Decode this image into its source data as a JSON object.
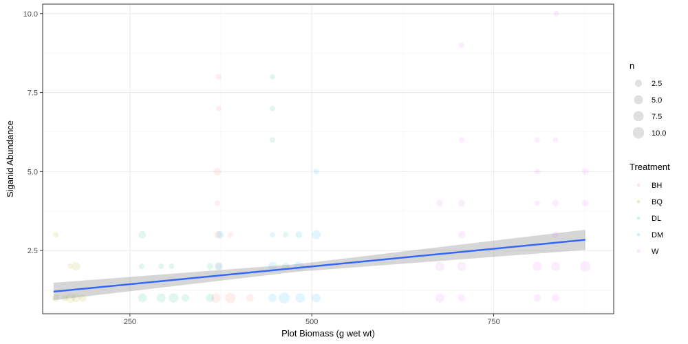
{
  "chart_data": {
    "type": "scatter",
    "title": "",
    "xlabel": "Plot Biomass (g wet wt)",
    "ylabel": "Siganid Abundance",
    "xlim": [
      130,
      915
    ],
    "ylim": [
      0.5,
      10.3
    ],
    "x_ticks": [
      250,
      500,
      750
    ],
    "x_tick_labels": [
      "250",
      "500",
      "750"
    ],
    "y_ticks": [
      2.5,
      5.0,
      7.5,
      10.0
    ],
    "y_tick_labels": [
      "2.5",
      "5.0",
      "7.5",
      "10.0"
    ],
    "grid": true,
    "legend_placement": "right",
    "size_legend": {
      "title": "n",
      "entries": [
        {
          "label": "2.5",
          "value": 2.5
        },
        {
          "label": "5.0",
          "value": 5.0
        },
        {
          "label": "7.5",
          "value": 7.5
        },
        {
          "label": "10.0",
          "value": 10.0
        }
      ]
    },
    "color_legend": {
      "title": "Treatment",
      "entries": [
        {
          "label": "BH",
          "color": "#F8766D"
        },
        {
          "label": "BQ",
          "color": "#A3A500"
        },
        {
          "label": "DL",
          "color": "#00BF7D"
        },
        {
          "label": "DM",
          "color": "#00B0F6"
        },
        {
          "label": "W",
          "color": "#E76BF3"
        }
      ]
    },
    "point_alpha": 0.12,
    "series": [
      {
        "name": "BH",
        "color": "#F8766D",
        "points": [
          {
            "x": 372,
            "y": 8,
            "n": 1
          },
          {
            "x": 372,
            "y": 7,
            "n": 1
          },
          {
            "x": 370,
            "y": 5,
            "n": 3
          },
          {
            "x": 370,
            "y": 4,
            "n": 1
          },
          {
            "x": 371,
            "y": 3,
            "n": 3
          },
          {
            "x": 388,
            "y": 3,
            "n": 1
          },
          {
            "x": 372,
            "y": 2,
            "n": 2
          },
          {
            "x": 368,
            "y": 1,
            "n": 6
          },
          {
            "x": 388,
            "y": 1,
            "n": 8
          },
          {
            "x": 415,
            "y": 1,
            "n": 3
          }
        ]
      },
      {
        "name": "BQ",
        "color": "#A3A500",
        "points": [
          {
            "x": 148,
            "y": 3,
            "n": 1
          },
          {
            "x": 168,
            "y": 2,
            "n": 1
          },
          {
            "x": 176,
            "y": 2,
            "n": 4
          },
          {
            "x": 148,
            "y": 1,
            "n": 3
          },
          {
            "x": 160,
            "y": 1,
            "n": 2
          },
          {
            "x": 168,
            "y": 1,
            "n": 6
          },
          {
            "x": 176,
            "y": 1,
            "n": 4
          },
          {
            "x": 185,
            "y": 1,
            "n": 3
          }
        ]
      },
      {
        "name": "DL",
        "color": "#00BF7D",
        "points": [
          {
            "x": 446,
            "y": 8,
            "n": 1
          },
          {
            "x": 446,
            "y": 7,
            "n": 1
          },
          {
            "x": 446,
            "y": 6,
            "n": 1
          },
          {
            "x": 267,
            "y": 3,
            "n": 3
          },
          {
            "x": 266,
            "y": 2,
            "n": 1
          },
          {
            "x": 293,
            "y": 2,
            "n": 1
          },
          {
            "x": 307,
            "y": 2,
            "n": 1
          },
          {
            "x": 360,
            "y": 2,
            "n": 2
          },
          {
            "x": 464,
            "y": 3,
            "n": 1
          },
          {
            "x": 464,
            "y": 2,
            "n": 3
          },
          {
            "x": 267,
            "y": 1,
            "n": 5
          },
          {
            "x": 293,
            "y": 1,
            "n": 5
          },
          {
            "x": 310,
            "y": 1,
            "n": 6
          },
          {
            "x": 326,
            "y": 1,
            "n": 3
          },
          {
            "x": 360,
            "y": 1,
            "n": 4
          }
        ]
      },
      {
        "name": "DM",
        "color": "#00B0F6",
        "points": [
          {
            "x": 506,
            "y": 5,
            "n": 1
          },
          {
            "x": 374,
            "y": 3,
            "n": 3
          },
          {
            "x": 446,
            "y": 3,
            "n": 1
          },
          {
            "x": 482,
            "y": 3,
            "n": 2
          },
          {
            "x": 506,
            "y": 3,
            "n": 5
          },
          {
            "x": 372,
            "y": 2,
            "n": 4
          },
          {
            "x": 446,
            "y": 2,
            "n": 5
          },
          {
            "x": 482,
            "y": 2,
            "n": 6
          },
          {
            "x": 446,
            "y": 1,
            "n": 4
          },
          {
            "x": 462,
            "y": 1,
            "n": 9
          },
          {
            "x": 484,
            "y": 1,
            "n": 6
          },
          {
            "x": 506,
            "y": 1,
            "n": 5
          }
        ]
      },
      {
        "name": "W",
        "color": "#E76BF3",
        "points": [
          {
            "x": 836,
            "y": 10,
            "n": 1
          },
          {
            "x": 706,
            "y": 9,
            "n": 1
          },
          {
            "x": 706,
            "y": 6,
            "n": 1
          },
          {
            "x": 810,
            "y": 6,
            "n": 1
          },
          {
            "x": 835,
            "y": 6,
            "n": 1
          },
          {
            "x": 810,
            "y": 5,
            "n": 1
          },
          {
            "x": 876,
            "y": 5,
            "n": 2
          },
          {
            "x": 676,
            "y": 4,
            "n": 2
          },
          {
            "x": 706,
            "y": 4,
            "n": 2
          },
          {
            "x": 810,
            "y": 4,
            "n": 1
          },
          {
            "x": 835,
            "y": 4,
            "n": 2
          },
          {
            "x": 876,
            "y": 4,
            "n": 2
          },
          {
            "x": 706,
            "y": 3,
            "n": 3
          },
          {
            "x": 835,
            "y": 3,
            "n": 2
          },
          {
            "x": 676,
            "y": 2,
            "n": 5
          },
          {
            "x": 706,
            "y": 2,
            "n": 5
          },
          {
            "x": 810,
            "y": 2,
            "n": 5
          },
          {
            "x": 835,
            "y": 2,
            "n": 5
          },
          {
            "x": 876,
            "y": 2,
            "n": 8
          },
          {
            "x": 676,
            "y": 1,
            "n": 5
          },
          {
            "x": 706,
            "y": 1,
            "n": 3
          },
          {
            "x": 810,
            "y": 1,
            "n": 3
          },
          {
            "x": 835,
            "y": 1,
            "n": 3
          }
        ]
      }
    ],
    "trend_line": {
      "method": "linear",
      "color": "#3366FF",
      "band_color": "#999999",
      "points": [
        {
          "x": 145,
          "y": 1.2,
          "ci_low": 0.93,
          "ci_high": 1.48
        },
        {
          "x": 480,
          "y": 1.95,
          "ci_low": 1.83,
          "ci_high": 2.07
        },
        {
          "x": 876,
          "y": 2.84,
          "ci_low": 2.52,
          "ci_high": 3.16
        }
      ]
    }
  }
}
